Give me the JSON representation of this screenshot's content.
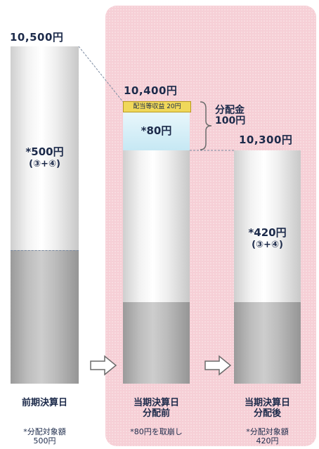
{
  "columns": {
    "previous": {
      "value_label": "10,500円",
      "inner_label": "*500円",
      "inner_sub": "(③+④)",
      "caption": "前期決算日",
      "note_line1": "*分配対象額",
      "note_line2": "500円"
    },
    "current_before": {
      "value_label": "10,400円",
      "income_label": "配当等収益 20円",
      "dist_label": "*80円",
      "caption_line1": "当期決算日",
      "caption_line2": "分配前",
      "note_line1": "*80円を取崩し"
    },
    "current_after": {
      "value_label": "10,300円",
      "inner_label": "*420円",
      "inner_sub": "(③+④)",
      "caption_line1": "当期決算日",
      "caption_line2": "分配後",
      "note_line1": "*分配対象額",
      "note_line2": "420円"
    }
  },
  "distribution": {
    "label_line1": "分配金",
    "label_line2": "100円"
  },
  "colors": {
    "panel": "#f6cfd6",
    "text": "#1c2a4a",
    "income": "#f0d85a",
    "dist": "#c6e8f4"
  },
  "icons": [
    "right-arrow-icon",
    "right-arrow-icon",
    "brace-icon"
  ]
}
